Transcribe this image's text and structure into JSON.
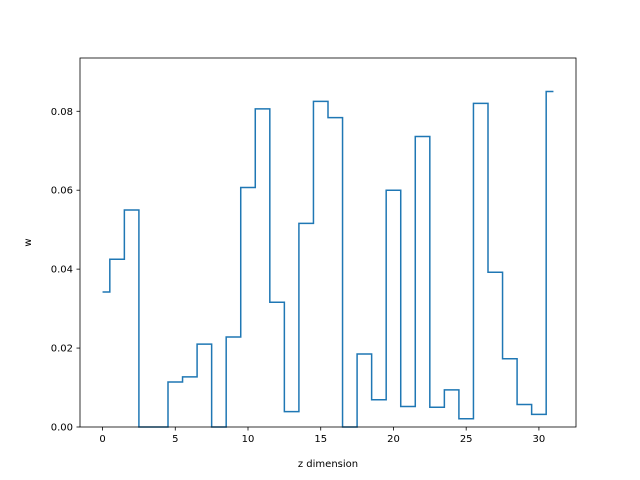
{
  "chart_data": {
    "type": "line",
    "drawstyle": "steps-mid",
    "title": "",
    "xlabel": "z dimension",
    "ylabel": "w",
    "xlim": [
      -1.55,
      32.55
    ],
    "ylim": [
      0,
      0.0935
    ],
    "xticks": [
      0,
      5,
      10,
      15,
      20,
      25,
      30
    ],
    "yticks": [
      0.0,
      0.02,
      0.04,
      0.06,
      0.08
    ],
    "ytick_labels": [
      "0.00",
      "0.02",
      "0.04",
      "0.06",
      "0.08"
    ],
    "grid": false,
    "color": "#1f77b4",
    "series": [
      {
        "x": [
          0,
          1,
          2,
          3,
          4,
          5,
          6,
          7,
          8,
          9,
          10,
          11,
          12,
          13,
          14,
          15,
          16,
          17,
          18,
          19,
          20,
          21,
          22,
          23,
          24,
          25,
          26,
          27,
          28,
          29,
          30,
          31
        ],
        "values": [
          0.0342,
          0.0425,
          0.055,
          0.0,
          0.0,
          0.0114,
          0.0127,
          0.021,
          0.0,
          0.0228,
          0.0607,
          0.0806,
          0.0316,
          0.0039,
          0.0516,
          0.0825,
          0.0784,
          0.0,
          0.0185,
          0.0069,
          0.06,
          0.0052,
          0.0736,
          0.005,
          0.0094,
          0.0021,
          0.082,
          0.0392,
          0.0173,
          0.0057,
          0.0032,
          0.085
        ]
      }
    ]
  }
}
